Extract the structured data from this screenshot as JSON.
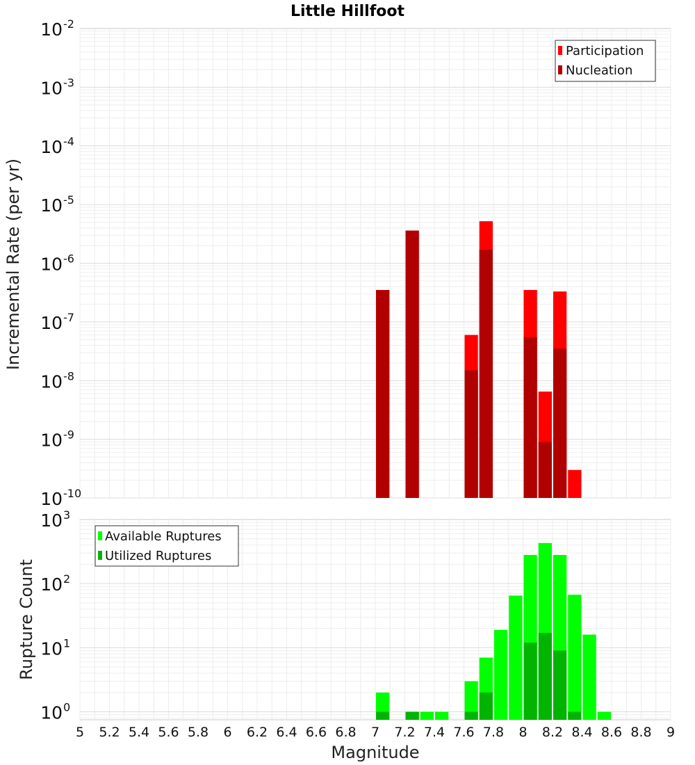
{
  "chart_data": [
    {
      "type": "bar",
      "title": "Little Hillfoot",
      "xlabel": "Magnitude",
      "ylabel": "Incremental Rate (per yr)",
      "yscale": "log",
      "xlim": [
        5,
        9
      ],
      "ylim": [
        1e-10,
        0.01
      ],
      "legend_position": "top-right",
      "grid": true,
      "bar_width": 0.1,
      "series": [
        {
          "name": "Participation",
          "color": "#ff0000",
          "x": [
            7.05,
            7.25,
            7.65,
            7.75,
            8.05,
            8.15,
            8.25,
            8.35
          ],
          "values": [
            3.5e-07,
            3.6e-06,
            6e-08,
            5.2e-06,
            3.5e-07,
            6.5e-09,
            3.3e-07,
            3e-10
          ]
        },
        {
          "name": "Nucleation",
          "color": "#b10000",
          "x": [
            7.05,
            7.25,
            7.65,
            7.75,
            8.05,
            8.15,
            8.25
          ],
          "values": [
            3.5e-07,
            3.6e-06,
            1.5e-08,
            1.7e-06,
            5.5e-08,
            9e-10,
            3.5e-08
          ]
        }
      ]
    },
    {
      "type": "bar",
      "xlabel": "Magnitude",
      "ylabel": "Rupture Count",
      "yscale": "log",
      "xlim": [
        5,
        9
      ],
      "ylim": [
        0.75,
        1000
      ],
      "legend_position": "top-left",
      "grid": true,
      "bar_width": 0.1,
      "series": [
        {
          "name": "Available Ruptures",
          "color": "#00ff00",
          "x": [
            7.05,
            7.25,
            7.35,
            7.45,
            7.65,
            7.75,
            7.85,
            7.95,
            8.05,
            8.15,
            8.25,
            8.35,
            8.45,
            8.55
          ],
          "values": [
            2,
            1,
            1,
            1,
            3,
            7,
            19,
            65,
            280,
            430,
            280,
            67,
            16,
            1
          ]
        },
        {
          "name": "Utilized Ruptures",
          "color": "#00b400",
          "x": [
            7.05,
            7.25,
            7.65,
            7.75,
            8.05,
            8.15,
            8.25,
            8.35
          ],
          "values": [
            1,
            1,
            1,
            2,
            12,
            17,
            9,
            1
          ]
        }
      ]
    }
  ],
  "x_ticks": [
    "5",
    "5.2",
    "5.4",
    "5.6",
    "5.8",
    "6",
    "6.2",
    "6.4",
    "6.6",
    "6.8",
    "7",
    "7.2",
    "7.4",
    "7.6",
    "7.8",
    "8",
    "8.2",
    "8.4",
    "8.6",
    "8.8",
    "9"
  ],
  "top_y_ticks": [
    {
      "base": "10",
      "exp": "-10"
    },
    {
      "base": "10",
      "exp": "-9"
    },
    {
      "base": "10",
      "exp": "-8"
    },
    {
      "base": "10",
      "exp": "-7"
    },
    {
      "base": "10",
      "exp": "-6"
    },
    {
      "base": "10",
      "exp": "-5"
    },
    {
      "base": "10",
      "exp": "-4"
    },
    {
      "base": "10",
      "exp": "-3"
    },
    {
      "base": "10",
      "exp": "-2"
    }
  ],
  "bottom_y_ticks": [
    {
      "base": "10",
      "exp": "0"
    },
    {
      "base": "10",
      "exp": "1"
    },
    {
      "base": "10",
      "exp": "2"
    },
    {
      "base": "10",
      "exp": "3"
    }
  ]
}
